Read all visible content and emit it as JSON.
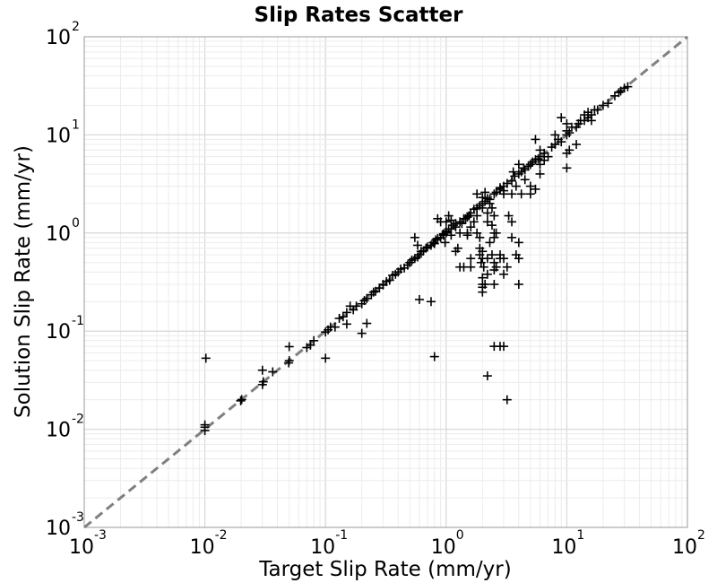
{
  "chart_data": {
    "type": "scatter",
    "title": "Slip Rates Scatter",
    "xlabel": "Target Slip Rate (mm/yr)",
    "ylabel": "Solution Slip Rate (mm/yr)",
    "xscale": "log",
    "yscale": "log",
    "xlim": [
      0.001,
      100
    ],
    "ylim": [
      0.001,
      100
    ],
    "grid": true,
    "marker": "plus",
    "marker_color": "#000000",
    "reference_line": {
      "style": "dashed",
      "color": "#808080",
      "from": [
        0.001,
        0.001
      ],
      "to": [
        100,
        100
      ]
    },
    "xticks": [
      {
        "base": "10",
        "exp": "-3"
      },
      {
        "base": "10",
        "exp": "-2"
      },
      {
        "base": "10",
        "exp": "-1"
      },
      {
        "base": "10",
        "exp": "0"
      },
      {
        "base": "10",
        "exp": "1"
      },
      {
        "base": "10",
        "exp": "2"
      }
    ],
    "yticks": [
      {
        "base": "10",
        "exp": "-3"
      },
      {
        "base": "10",
        "exp": "-2"
      },
      {
        "base": "10",
        "exp": "-1"
      },
      {
        "base": "10",
        "exp": "0"
      },
      {
        "base": "10",
        "exp": "1"
      },
      {
        "base": "10",
        "exp": "2"
      }
    ],
    "points": [
      [
        0.01,
        0.0097
      ],
      [
        0.01,
        0.0105
      ],
      [
        0.01,
        0.0111
      ],
      [
        0.0102,
        0.053
      ],
      [
        0.0198,
        0.0195
      ],
      [
        0.0202,
        0.0201
      ],
      [
        0.03,
        0.0285
      ],
      [
        0.0305,
        0.0305
      ],
      [
        0.03,
        0.04
      ],
      [
        0.0365,
        0.0385
      ],
      [
        0.0495,
        0.0475
      ],
      [
        0.05,
        0.05
      ],
      [
        0.05,
        0.0695
      ],
      [
        0.07,
        0.068
      ],
      [
        0.075,
        0.072
      ],
      [
        0.08,
        0.08
      ],
      [
        0.1,
        0.053
      ],
      [
        0.1,
        0.098
      ],
      [
        0.105,
        0.103
      ],
      [
        0.11,
        0.11
      ],
      [
        0.12,
        0.11
      ],
      [
        0.13,
        0.135
      ],
      [
        0.14,
        0.14
      ],
      [
        0.15,
        0.118
      ],
      [
        0.15,
        0.155
      ],
      [
        0.17,
        0.165
      ],
      [
        0.16,
        0.18
      ],
      [
        0.18,
        0.18
      ],
      [
        0.2,
        0.095
      ],
      [
        0.2,
        0.19
      ],
      [
        0.21,
        0.205
      ],
      [
        0.22,
        0.215
      ],
      [
        0.22,
        0.12
      ],
      [
        0.24,
        0.235
      ],
      [
        0.25,
        0.25
      ],
      [
        0.26,
        0.255
      ],
      [
        0.28,
        0.275
      ],
      [
        0.3,
        0.295
      ],
      [
        0.3,
        0.3
      ],
      [
        0.32,
        0.32
      ],
      [
        0.34,
        0.33
      ],
      [
        0.36,
        0.37
      ],
      [
        0.38,
        0.38
      ],
      [
        0.4,
        0.4
      ],
      [
        0.42,
        0.43
      ],
      [
        0.45,
        0.44
      ],
      [
        0.48,
        0.47
      ],
      [
        0.5,
        0.5
      ],
      [
        0.52,
        0.53
      ],
      [
        0.55,
        0.55
      ],
      [
        0.58,
        0.57
      ],
      [
        0.6,
        0.6
      ],
      [
        0.62,
        0.65
      ],
      [
        0.65,
        0.66
      ],
      [
        0.68,
        0.7
      ],
      [
        0.7,
        0.72
      ],
      [
        0.75,
        0.75
      ],
      [
        0.78,
        0.8
      ],
      [
        0.8,
        0.78
      ],
      [
        0.82,
        0.85
      ],
      [
        0.85,
        0.88
      ],
      [
        0.9,
        0.9
      ],
      [
        0.95,
        0.95
      ],
      [
        1.0,
        1.0
      ],
      [
        1.0,
        1.02
      ],
      [
        1.05,
        1.1
      ],
      [
        1.1,
        1.1
      ],
      [
        1.15,
        1.2
      ],
      [
        1.2,
        1.25
      ],
      [
        0.6,
        0.21
      ],
      [
        0.75,
        0.2
      ],
      [
        0.8,
        0.055
      ],
      [
        0.58,
        0.75
      ],
      [
        0.55,
        0.9
      ],
      [
        0.9,
        1.3
      ],
      [
        0.85,
        1.4
      ],
      [
        0.95,
        0.98
      ],
      [
        1.0,
        1.3
      ],
      [
        1.05,
        1.5
      ],
      [
        1.1,
        0.95
      ],
      [
        1.2,
        1.15
      ],
      [
        1.0,
        1.05
      ],
      [
        0.98,
        0.8
      ],
      [
        1.3,
        1.3
      ],
      [
        1.4,
        1.4
      ],
      [
        1.5,
        1.45
      ],
      [
        1.6,
        1.6
      ],
      [
        1.7,
        1.75
      ],
      [
        1.8,
        1.8
      ],
      [
        1.9,
        1.9
      ],
      [
        2.0,
        2.0
      ],
      [
        2.0,
        1.8
      ],
      [
        2.1,
        2.1
      ],
      [
        2.2,
        2.25
      ],
      [
        2.3,
        2.2
      ],
      [
        2.5,
        2.5
      ],
      [
        2.6,
        2.6
      ],
      [
        2.8,
        2.8
      ],
      [
        3.0,
        3.0
      ],
      [
        3.2,
        3.2
      ],
      [
        3.5,
        3.4
      ],
      [
        3.7,
        3.8
      ],
      [
        4.0,
        4.0
      ],
      [
        4.2,
        4.2
      ],
      [
        4.5,
        4.4
      ],
      [
        4.8,
        4.8
      ],
      [
        5.0,
        5.0
      ],
      [
        5.2,
        5.3
      ],
      [
        5.5,
        5.6
      ],
      [
        5.8,
        5.7
      ],
      [
        6.0,
        6.0
      ],
      [
        1.5,
        1.0
      ],
      [
        1.5,
        0.95
      ],
      [
        1.6,
        0.55
      ],
      [
        1.6,
        0.45
      ],
      [
        1.4,
        0.45
      ],
      [
        1.3,
        0.45
      ],
      [
        1.8,
        1.0
      ],
      [
        1.9,
        0.9
      ],
      [
        1.9,
        0.7
      ],
      [
        1.9,
        0.6
      ],
      [
        2.0,
        0.65
      ],
      [
        2.0,
        0.55
      ],
      [
        1.95,
        0.5
      ],
      [
        2.05,
        0.45
      ],
      [
        2.0,
        0.35
      ],
      [
        2.0,
        0.3
      ],
      [
        2.0,
        0.28
      ],
      [
        2.0,
        0.25
      ],
      [
        2.1,
        0.3
      ],
      [
        2.2,
        0.38
      ],
      [
        2.2,
        0.55
      ],
      [
        2.3,
        0.8
      ],
      [
        2.4,
        0.6
      ],
      [
        2.5,
        0.5
      ],
      [
        2.5,
        0.3
      ],
      [
        2.5,
        0.42
      ],
      [
        2.6,
        0.45
      ],
      [
        2.8,
        0.6
      ],
      [
        2.8,
        0.55
      ],
      [
        3.0,
        0.55
      ],
      [
        3.2,
        0.45
      ],
      [
        3.0,
        0.38
      ],
      [
        2.5,
        0.9
      ],
      [
        2.6,
        1.0
      ],
      [
        2.4,
        1.2
      ],
      [
        2.2,
        1.3
      ],
      [
        2.5,
        1.5
      ],
      [
        2.2,
        1.6
      ],
      [
        2.4,
        1.8
      ],
      [
        2.3,
        2.0
      ],
      [
        2.5,
        1.0
      ],
      [
        3.3,
        1.5
      ],
      [
        3.5,
        1.3
      ],
      [
        3.5,
        0.9
      ],
      [
        3.8,
        0.6
      ],
      [
        4.0,
        0.55
      ],
      [
        4.0,
        0.3
      ],
      [
        4.0,
        0.8
      ],
      [
        3.0,
        2.5
      ],
      [
        3.0,
        2.7
      ],
      [
        2.8,
        2.9
      ],
      [
        3.5,
        2.5
      ],
      [
        2.0,
        2.3
      ],
      [
        2.1,
        2.6
      ],
      [
        1.8,
        2.5
      ],
      [
        2.5,
        0.07
      ],
      [
        2.8,
        0.07
      ],
      [
        3.0,
        0.07
      ],
      [
        2.2,
        0.035
      ],
      [
        3.2,
        0.02
      ],
      [
        1.8,
        1.5
      ],
      [
        1.7,
        1.3
      ],
      [
        1.6,
        1.15
      ],
      [
        6.0,
        7.0
      ],
      [
        6.5,
        6.5
      ],
      [
        5.5,
        9.0
      ],
      [
        6.0,
        4.0
      ],
      [
        5.0,
        3.0
      ],
      [
        5.0,
        2.5
      ],
      [
        4.5,
        3.5
      ],
      [
        5.5,
        2.8
      ],
      [
        6.0,
        5.0
      ],
      [
        6.5,
        5.5
      ],
      [
        7.0,
        6.0
      ],
      [
        7.5,
        7.5
      ],
      [
        8.0,
        8.0
      ],
      [
        8.0,
        10.0
      ],
      [
        8.5,
        9.0
      ],
      [
        9.0,
        8.5
      ],
      [
        10.0,
        10.0
      ],
      [
        10.0,
        11.0
      ],
      [
        10.5,
        10.5
      ],
      [
        11.0,
        12.0
      ],
      [
        12.0,
        12.0
      ],
      [
        12.5,
        13.0
      ],
      [
        13.0,
        14.0
      ],
      [
        14.0,
        14.0
      ],
      [
        15.0,
        15.0
      ],
      [
        15.0,
        17.0
      ],
      [
        16.0,
        16.0
      ],
      [
        17.0,
        18.0
      ],
      [
        18.0,
        18.0
      ],
      [
        10.0,
        4.6
      ],
      [
        10.0,
        6.5
      ],
      [
        10.5,
        7.0
      ],
      [
        9.0,
        15.0
      ],
      [
        10.0,
        13.0
      ],
      [
        20.0,
        20.0
      ],
      [
        22.0,
        21.0
      ],
      [
        25.0,
        25.0
      ],
      [
        27.0,
        27.0
      ],
      [
        28.0,
        28.0
      ],
      [
        30.0,
        30.0
      ],
      [
        32.0,
        31.0
      ],
      [
        12.0,
        8.0
      ],
      [
        14.0,
        16.0
      ],
      [
        16.0,
        14.0
      ],
      [
        3.8,
        3.0
      ],
      [
        4.2,
        2.5
      ],
      [
        4.0,
        5.0
      ],
      [
        3.6,
        4.2
      ],
      [
        4.4,
        4.6
      ],
      [
        1.2,
        0.65
      ],
      [
        1.25,
        0.7
      ],
      [
        1.1,
        1.35
      ],
      [
        1.3,
        1.0
      ],
      [
        1.35,
        1.25
      ],
      [
        1.45,
        1.4
      ],
      [
        1.55,
        1.5
      ]
    ]
  }
}
